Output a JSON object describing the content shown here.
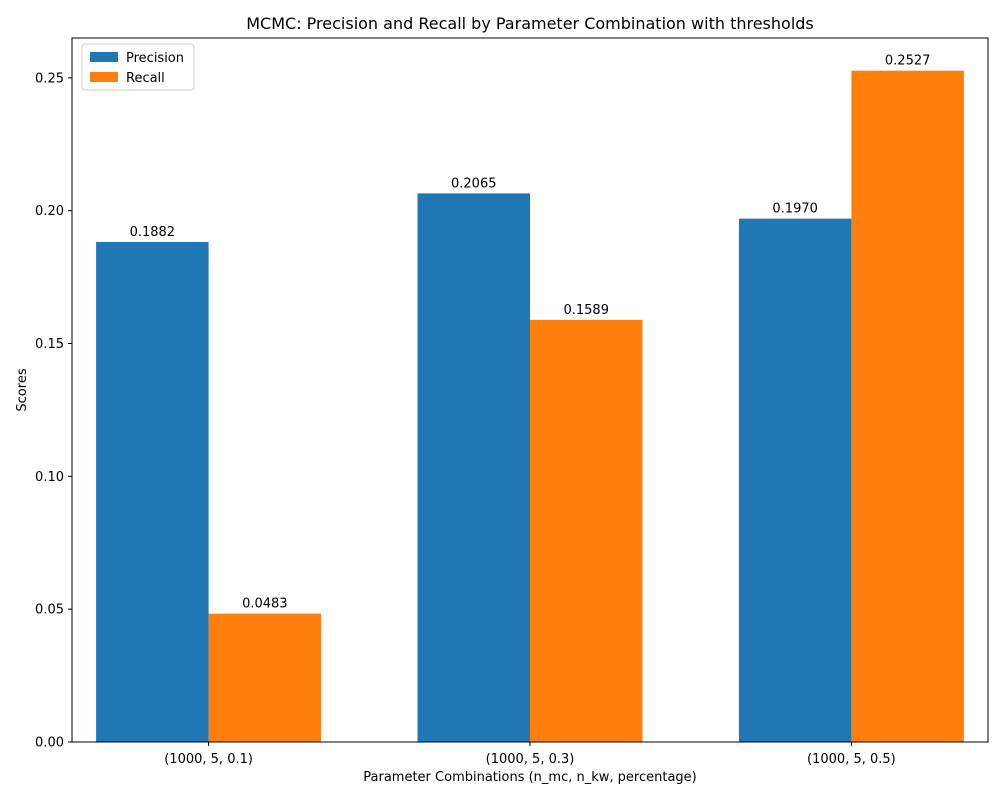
{
  "chart_data": {
    "type": "bar",
    "title": "MCMC: Precision and Recall by Parameter Combination with thresholds",
    "xlabel": "Parameter Combinations (n_mc, n_kw, percentage)",
    "ylabel": "Scores",
    "categories": [
      "(1000, 5, 0.1)",
      "(1000, 5, 0.3)",
      "(1000, 5, 0.5)"
    ],
    "series": [
      {
        "name": "Precision",
        "color": "#1f77b4",
        "values": [
          0.1882,
          0.2065,
          0.197
        ],
        "labels": [
          "0.1882",
          "0.2065",
          "0.1970"
        ]
      },
      {
        "name": "Recall",
        "color": "#ff7f0e",
        "values": [
          0.0483,
          0.1589,
          0.2527
        ],
        "labels": [
          "0.0483",
          "0.1589",
          "0.2527"
        ]
      }
    ],
    "ylim": [
      0,
      0.265
    ],
    "yticks": [
      0.0,
      0.05,
      0.1,
      0.15,
      0.2,
      0.25
    ],
    "ytick_labels": [
      "0.00",
      "0.05",
      "0.10",
      "0.15",
      "0.20",
      "0.25"
    ],
    "grid": false,
    "legend_position": "top-left"
  }
}
